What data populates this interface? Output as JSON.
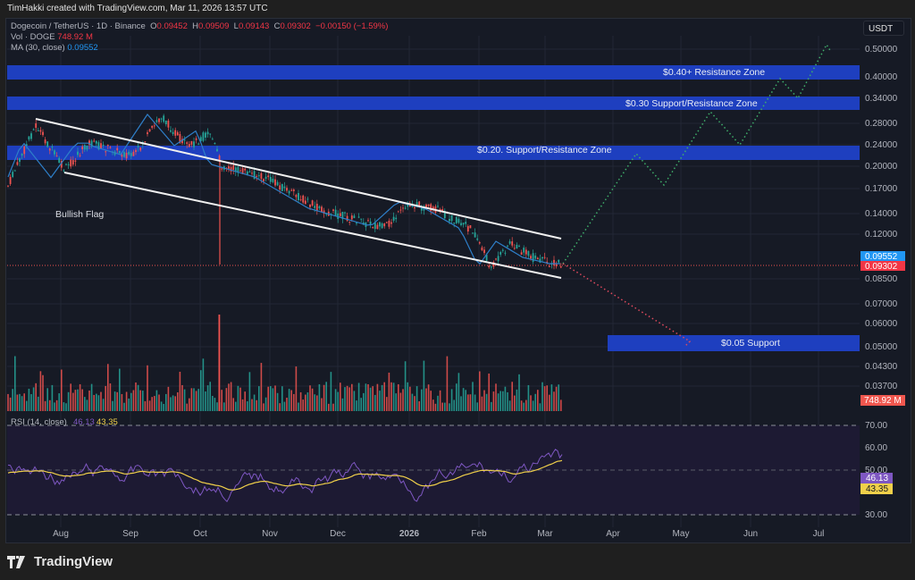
{
  "credit": "TimHakki created with TradingView.com, Mar 11, 2026 13:57 UTC",
  "legend": {
    "symbol": "Dogecoin / TetherUS · 1D · Binance",
    "o_label": "O",
    "o": "0.09452",
    "h_label": "H",
    "h": "0.09509",
    "l_label": "L",
    "l": "0.09143",
    "c_label": "C",
    "c": "0.09302",
    "change": "−0.00150 (−1.59%)",
    "vol_label": "Vol · DOGE",
    "vol": "748.92 M",
    "ma_label": "MA (30, close)",
    "ma": "0.09552",
    "rsi_label": "RSI (14, close)",
    "rsi": "46.13",
    "rsi_ma": "43.35"
  },
  "currency": "USDT",
  "brand": "TradingView",
  "colors": {
    "up": "#26a69a",
    "down": "#ef5350",
    "zone": "#1e3fbf",
    "ma": "#2e7fc9",
    "rsi": "#7e57c2",
    "rsi_ma": "#f0d04a"
  },
  "chart_data": {
    "type": "candlestick",
    "title": "Dogecoin / TetherUS · 1D · Binance",
    "price_axis_ticks": [
      "0.50000",
      "0.40000",
      "0.34000",
      "0.28000",
      "0.24000",
      "0.20000",
      "0.17000",
      "0.14000",
      "0.12000",
      "0.08500",
      "0.07000",
      "0.06000",
      "0.05000",
      "0.04300",
      "0.03700"
    ],
    "time_axis_ticks": [
      "Aug",
      "Sep",
      "Oct",
      "Nov",
      "Dec",
      "2026",
      "Feb",
      "Mar",
      "Apr",
      "May",
      "Jun",
      "Jul"
    ],
    "last_price": 0.09302,
    "ma30": 0.09552,
    "volume_last": "748.92 M",
    "rsi_ticks": [
      "70.00",
      "60.00",
      "50.00",
      "30.00"
    ],
    "rsi_value": 46.13,
    "rsi_ma_value": 43.35,
    "zones": [
      {
        "label": "$0.40+ Resistance Zone",
        "price": 0.4
      },
      {
        "label": "$0.30 Support/Resistance Zone",
        "price": 0.3
      },
      {
        "label": "$0.20. Support/Resistance Zone",
        "price": 0.2
      },
      {
        "label": "$0.05 Support",
        "price": 0.05
      }
    ],
    "annotations": [
      "Bullish Flag"
    ],
    "approx_close_path": [
      {
        "t": "Jul start",
        "p": 0.17
      },
      {
        "t": "late Jul",
        "p": 0.28
      },
      {
        "t": "early Aug",
        "p": 0.2
      },
      {
        "t": "Aug",
        "p": 0.23
      },
      {
        "t": "mid Sep",
        "p": 0.29
      },
      {
        "t": "late Sep",
        "p": 0.22
      },
      {
        "t": "early Oct",
        "p": 0.26
      },
      {
        "t": "Oct 10",
        "p": 0.19
      },
      {
        "t": "Nov",
        "p": 0.17
      },
      {
        "t": "Dec",
        "p": 0.13
      },
      {
        "t": "early Jan",
        "p": 0.15
      },
      {
        "t": "late Jan",
        "p": 0.12
      },
      {
        "t": "Feb",
        "p": 0.09
      },
      {
        "t": "Mar 11",
        "p": 0.093
      }
    ],
    "projection_bull": [
      0.093,
      0.22,
      0.17,
      0.3,
      0.24,
      0.4,
      0.34,
      0.5
    ],
    "projection_bear": [
      0.093,
      0.05
    ]
  }
}
